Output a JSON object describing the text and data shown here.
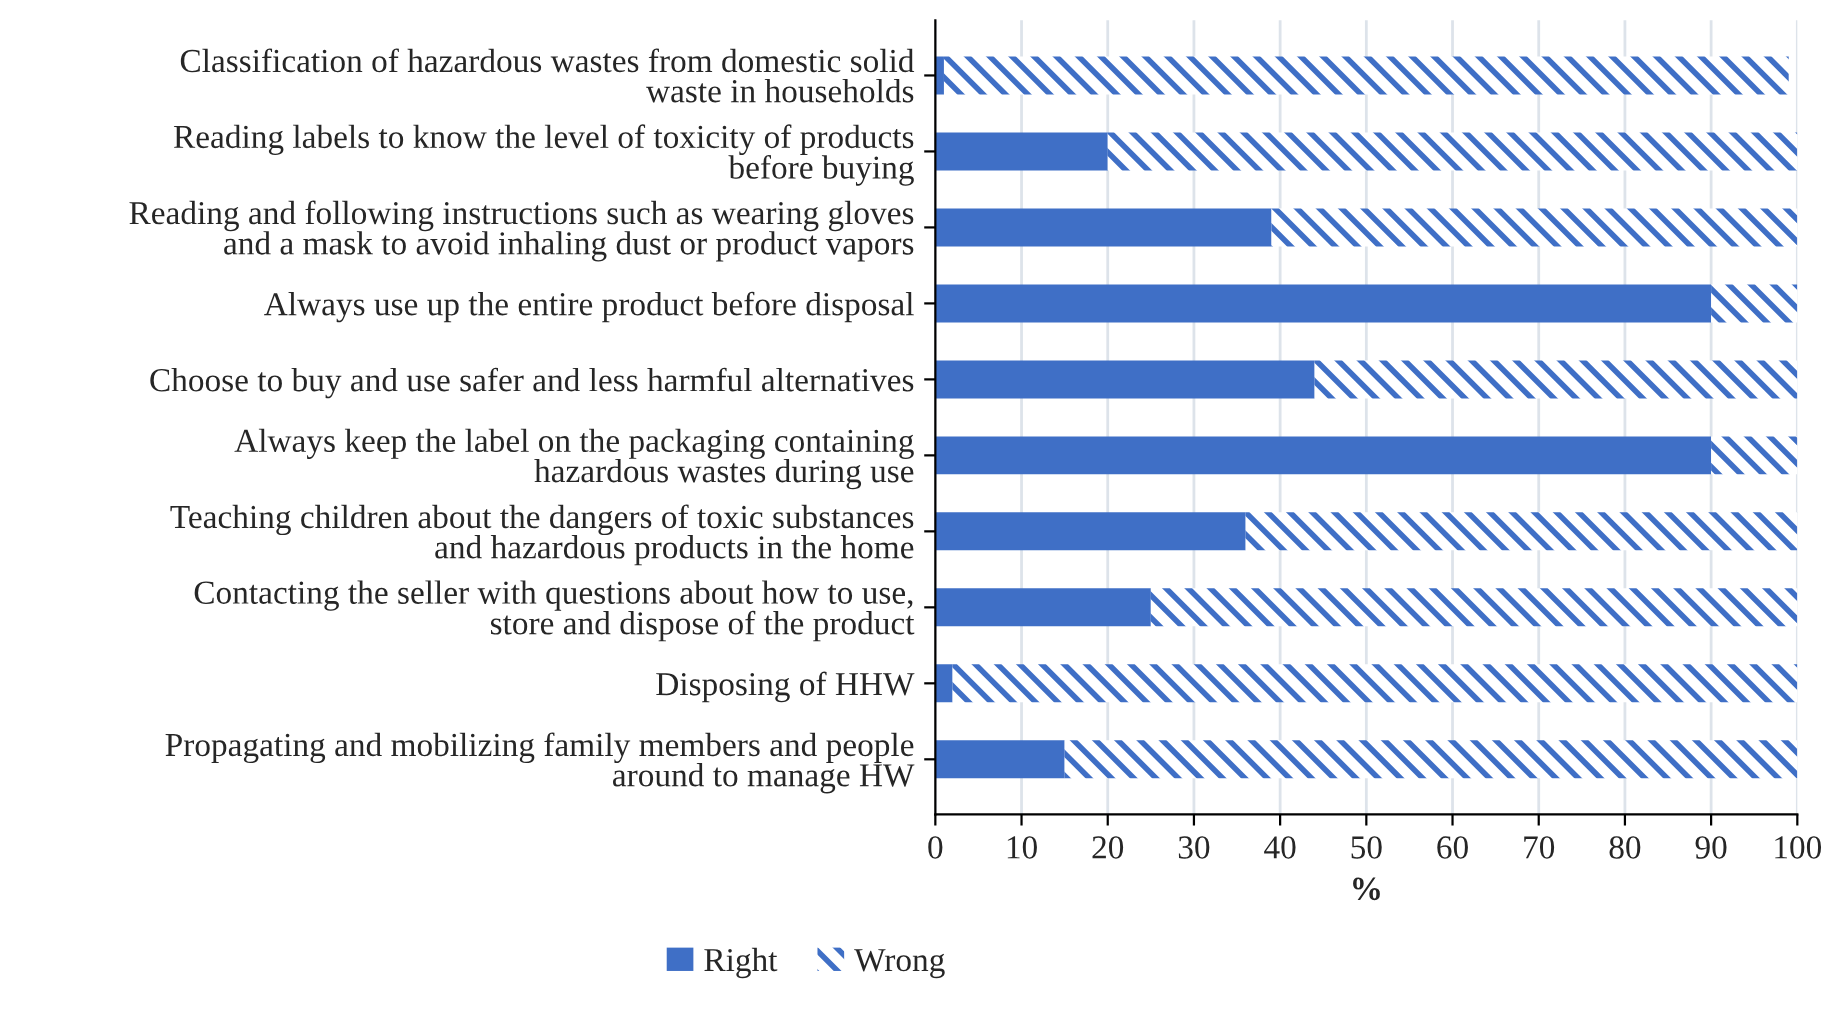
{
  "chart_data": {
    "type": "bar",
    "orientation": "horizontal",
    "stacked": true,
    "xlabel": "%",
    "categories": [
      "Classification of hazardous wastes from domestic solid\nwaste in households",
      "Reading labels to know the level of toxicity of products\nbefore buying",
      "Reading and following instructions such as wearing gloves\nand a mask to avoid inhaling dust or product vapors",
      "Always use up the entire product before disposal",
      "Choose to buy and use safer and less harmful alternatives",
      "Always keep the label on the packaging containing\nhazardous wastes during use",
      "Teaching children about the dangers of toxic substances\nand hazardous products in the home",
      "Contacting the seller with questions about how to use,\nstore and dispose of the product",
      "Disposing of HHW",
      "Propagating and mobilizing family members and people\naround to manage HW"
    ],
    "series": [
      {
        "name": "Right",
        "color": "#3f6fc6",
        "values": [
          1,
          20,
          39,
          90,
          44,
          90,
          36,
          25,
          2,
          15
        ]
      },
      {
        "name": "Wrong",
        "color": "#3f6fc6",
        "values": [
          98,
          80,
          61,
          10,
          56,
          10,
          64,
          75,
          98,
          85
        ]
      }
    ],
    "xlim": [
      0,
      100
    ],
    "xticks": [
      0,
      10,
      20,
      30,
      40,
      50,
      60,
      70,
      80,
      90,
      100
    ],
    "grid": "x",
    "legend": "bottom"
  }
}
